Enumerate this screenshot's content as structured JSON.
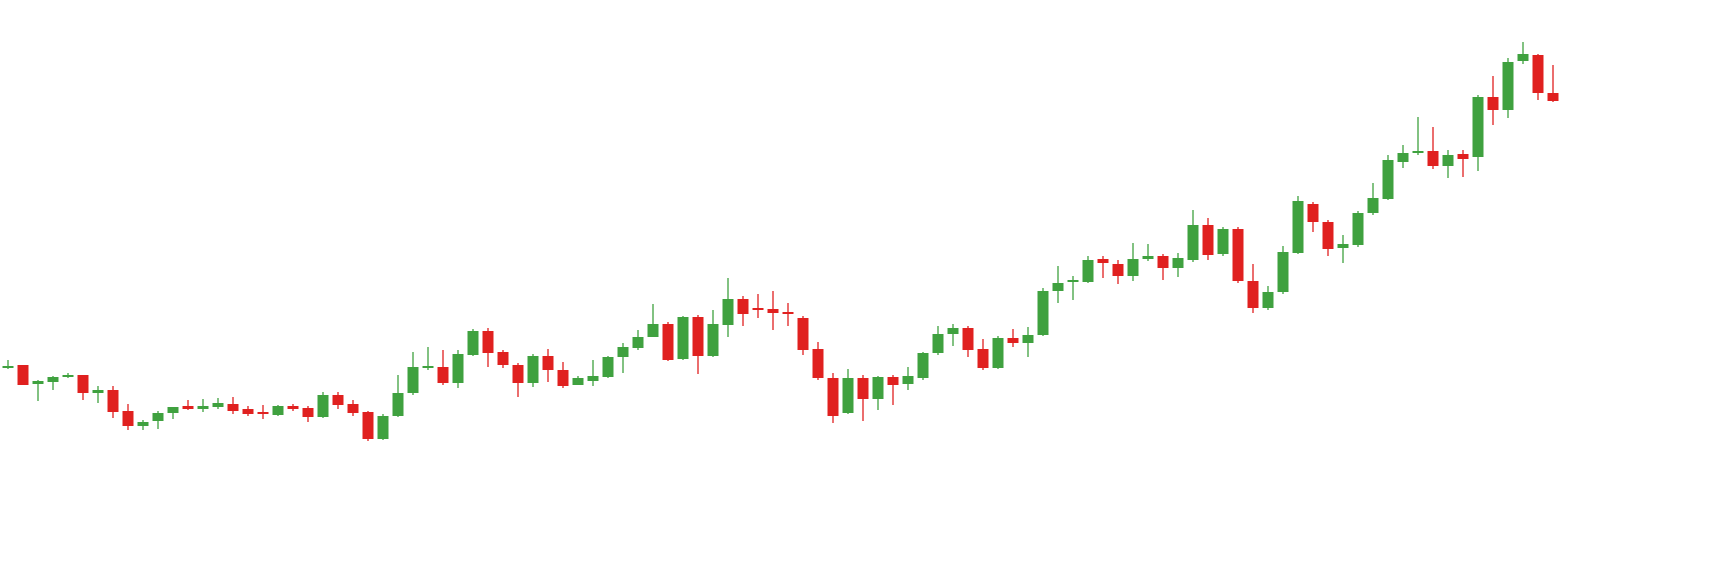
{
  "chart_data": {
    "type": "candlestick",
    "up_color": "#3fa13f",
    "down_color": "#e0201f",
    "ylim": [
      0,
      561
    ],
    "open": [
      193,
      196,
      177,
      179,
      184,
      186,
      168,
      171,
      150,
      135,
      140,
      148,
      155,
      152,
      154,
      157,
      152,
      149,
      146,
      155,
      153,
      144,
      166,
      157,
      149,
      122,
      145,
      168,
      193,
      194,
      178,
      206,
      230,
      209,
      196,
      178,
      205,
      191,
      176,
      180,
      184,
      204,
      213,
      224,
      237,
      202,
      244,
      205,
      236,
      262,
      253,
      252,
      249,
      243,
      212,
      183,
      148,
      183,
      162,
      184,
      177,
      183,
      208,
      227,
      233,
      212,
      193,
      223,
      218,
      226,
      270,
      279,
      279,
      302,
      297,
      285,
      302,
      305,
      293,
      301,
      336,
      307,
      332,
      280,
      253,
      269,
      308,
      357,
      339,
      313,
      316,
      348,
      362,
      399,
      408,
      410,
      395,
      407,
      404,
      464,
      451,
      500,
      506,
      468
    ],
    "high": [
      201,
      196,
      181,
      185,
      188,
      186,
      175,
      175,
      157,
      141,
      150,
      154,
      161,
      162,
      163,
      164,
      155,
      156,
      156,
      157,
      155,
      169,
      169,
      161,
      150,
      147,
      186,
      209,
      214,
      211,
      211,
      232,
      233,
      211,
      198,
      207,
      212,
      199,
      185,
      201,
      205,
      218,
      231,
      257,
      239,
      245,
      246,
      251,
      283,
      265,
      267,
      270,
      258,
      245,
      219,
      188,
      192,
      186,
      185,
      186,
      194,
      209,
      235,
      237,
      235,
      222,
      225,
      232,
      234,
      273,
      295,
      285,
      305,
      305,
      301,
      318,
      317,
      307,
      308,
      351,
      343,
      334,
      334,
      297,
      275,
      315,
      365,
      359,
      341,
      326,
      350,
      378,
      406,
      416,
      444,
      434,
      411,
      411,
      466,
      485,
      503,
      519,
      507,
      496
    ],
    "low": [
      192,
      176,
      160,
      171,
      183,
      161,
      158,
      143,
      131,
      131,
      132,
      142,
      151,
      149,
      152,
      147,
      145,
      142,
      145,
      150,
      139,
      143,
      152,
      145,
      120,
      121,
      144,
      166,
      191,
      176,
      173,
      205,
      194,
      193,
      164,
      174,
      179,
      173,
      176,
      175,
      183,
      188,
      211,
      224,
      200,
      201,
      187,
      204,
      224,
      235,
      243,
      231,
      235,
      206,
      181,
      138,
      147,
      140,
      151,
      156,
      171,
      181,
      206,
      215,
      204,
      191,
      192,
      214,
      204,
      225,
      258,
      261,
      278,
      283,
      277,
      280,
      300,
      281,
      284,
      299,
      301,
      305,
      278,
      248,
      251,
      267,
      307,
      329,
      305,
      298,
      314,
      346,
      361,
      393,
      406,
      392,
      383,
      384,
      390,
      436,
      443,
      497,
      461,
      459
    ],
    "close": [
      195,
      176,
      180,
      184,
      186,
      168,
      171,
      149,
      135,
      139,
      148,
      154,
      152,
      155,
      158,
      150,
      147,
      147,
      155,
      152,
      144,
      166,
      156,
      148,
      122,
      145,
      168,
      194,
      195,
      178,
      207,
      230,
      208,
      196,
      178,
      205,
      191,
      175,
      183,
      185,
      204,
      214,
      224,
      237,
      201,
      244,
      205,
      237,
      262,
      247,
      251,
      248,
      247,
      211,
      183,
      145,
      183,
      162,
      184,
      176,
      185,
      208,
      227,
      233,
      211,
      193,
      223,
      218,
      226,
      270,
      278,
      281,
      301,
      298,
      285,
      302,
      305,
      293,
      303,
      336,
      306,
      332,
      280,
      253,
      269,
      309,
      360,
      339,
      312,
      317,
      348,
      363,
      401,
      408,
      410,
      395,
      406,
      402,
      464,
      451,
      499,
      507,
      468,
      460
    ]
  }
}
